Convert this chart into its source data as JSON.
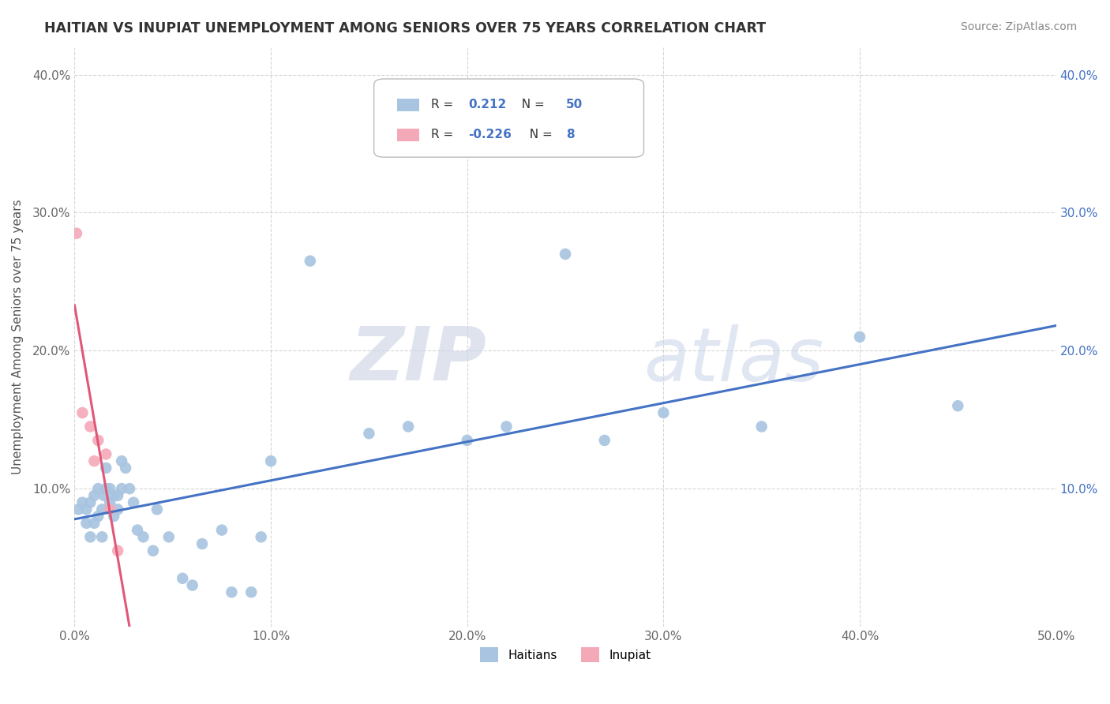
{
  "title": "HAITIAN VS INUPIAT UNEMPLOYMENT AMONG SENIORS OVER 75 YEARS CORRELATION CHART",
  "source": "Source: ZipAtlas.com",
  "ylabel": "Unemployment Among Seniors over 75 years",
  "xlim": [
    0.0,
    0.5
  ],
  "ylim": [
    0.0,
    0.42
  ],
  "xticks": [
    0.0,
    0.1,
    0.2,
    0.3,
    0.4,
    0.5
  ],
  "xticklabels": [
    "0.0%",
    "10.0%",
    "20.0%",
    "30.0%",
    "40.0%",
    "50.0%"
  ],
  "yticks": [
    0.0,
    0.1,
    0.2,
    0.3,
    0.4
  ],
  "yticklabels": [
    "",
    "10.0%",
    "20.0%",
    "30.0%",
    "40.0%"
  ],
  "yticklabels_right": [
    "",
    "10.0%",
    "20.0%",
    "30.0%",
    "40.0%"
  ],
  "haitian_R": 0.212,
  "haitian_N": 50,
  "inupiat_R": -0.226,
  "inupiat_N": 8,
  "haitian_color": "#a8c4e0",
  "inupiat_color": "#f4a9b8",
  "haitian_line_color": "#4472c4",
  "inupiat_line_color": "#e05878",
  "watermark_zip": "ZIP",
  "watermark_atlas": "atlas",
  "haitian_x": [
    0.002,
    0.004,
    0.006,
    0.006,
    0.008,
    0.008,
    0.01,
    0.01,
    0.012,
    0.012,
    0.014,
    0.014,
    0.015,
    0.016,
    0.016,
    0.018,
    0.018,
    0.02,
    0.02,
    0.022,
    0.022,
    0.024,
    0.024,
    0.026,
    0.028,
    0.03,
    0.032,
    0.035,
    0.04,
    0.042,
    0.048,
    0.055,
    0.06,
    0.065,
    0.075,
    0.08,
    0.09,
    0.095,
    0.1,
    0.12,
    0.15,
    0.17,
    0.2,
    0.22,
    0.25,
    0.27,
    0.3,
    0.35,
    0.4,
    0.45
  ],
  "haitian_y": [
    0.085,
    0.09,
    0.075,
    0.085,
    0.065,
    0.09,
    0.075,
    0.095,
    0.08,
    0.1,
    0.065,
    0.085,
    0.095,
    0.1,
    0.115,
    0.09,
    0.1,
    0.08,
    0.095,
    0.085,
    0.095,
    0.1,
    0.12,
    0.115,
    0.1,
    0.09,
    0.07,
    0.065,
    0.055,
    0.085,
    0.065,
    0.035,
    0.03,
    0.06,
    0.07,
    0.025,
    0.025,
    0.065,
    0.12,
    0.265,
    0.14,
    0.145,
    0.135,
    0.145,
    0.27,
    0.135,
    0.155,
    0.145,
    0.21,
    0.16
  ],
  "inupiat_x": [
    0.001,
    0.004,
    0.008,
    0.01,
    0.012,
    0.016,
    0.018,
    0.022
  ],
  "inupiat_y": [
    0.285,
    0.155,
    0.145,
    0.12,
    0.135,
    0.125,
    0.085,
    0.055
  ],
  "inupiat_line_xlim": [
    0.0,
    0.035
  ]
}
